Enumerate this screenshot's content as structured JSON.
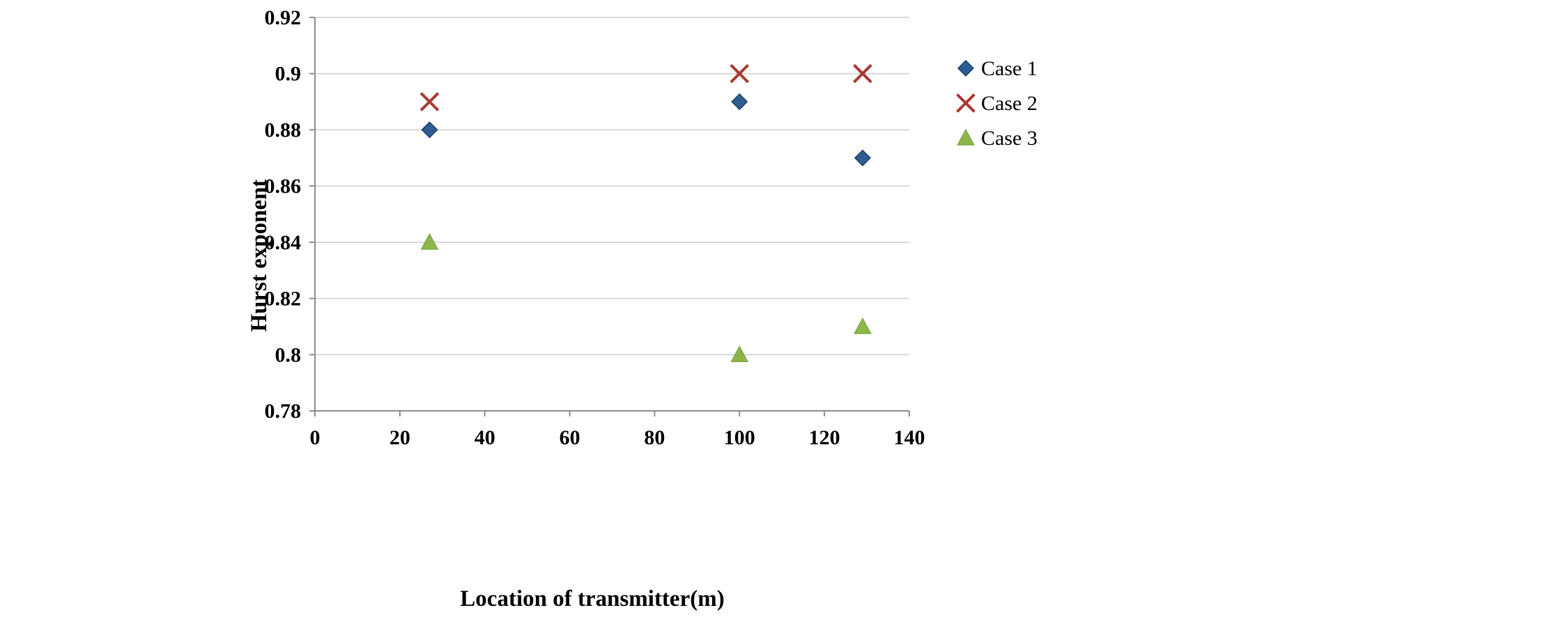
{
  "chart_data": {
    "type": "scatter",
    "xlabel": "Location of transmitter(m)",
    "ylabel": "Hurst exponent",
    "xlim": [
      0,
      140
    ],
    "ylim": [
      0.78,
      0.92
    ],
    "xticks": [
      "0",
      "20",
      "40",
      "60",
      "80",
      "100",
      "120",
      "140"
    ],
    "yticks": [
      "0.78",
      "0.8",
      "0.82",
      "0.84",
      "0.86",
      "0.88",
      "0.9",
      "0.92"
    ],
    "grid": "horizontal",
    "legend_position": "right",
    "series": [
      {
        "name": "Case 1",
        "marker": "diamond",
        "color": "#2f5d93",
        "x": [
          27,
          100,
          129
        ],
        "y": [
          0.88,
          0.89,
          0.87
        ]
      },
      {
        "name": "Case 2",
        "marker": "x",
        "color": "#a83a32",
        "x": [
          27,
          100,
          129
        ],
        "y": [
          0.89,
          0.9,
          0.9
        ]
      },
      {
        "name": "Case 3",
        "marker": "triangle",
        "color": "#8db54a",
        "x": [
          27,
          100,
          129
        ],
        "y": [
          0.84,
          0.8,
          0.81
        ]
      }
    ]
  }
}
